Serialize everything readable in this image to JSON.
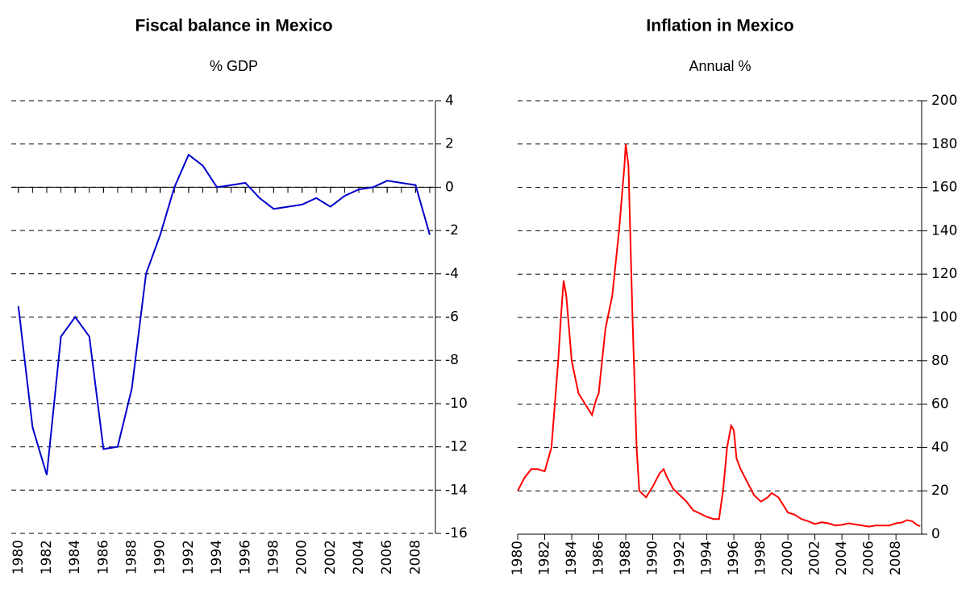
{
  "chart_data": [
    {
      "type": "line",
      "title": "Fiscal balance in Mexico",
      "subtitle": "% GDP",
      "x": [
        1980,
        1981,
        1982,
        1983,
        1984,
        1985,
        1986,
        1987,
        1988,
        1989,
        1990,
        1991,
        1992,
        1993,
        1994,
        1995,
        1996,
        1997,
        1998,
        1999,
        2000,
        2001,
        2002,
        2003,
        2004,
        2005,
        2006,
        2007,
        2008,
        2009
      ],
      "series": [
        {
          "name": "Fiscal balance",
          "color": "#0000cc",
          "values": [
            -5.5,
            -11.1,
            -13.3,
            -6.9,
            -6.0,
            -6.9,
            -12.1,
            -12.0,
            -9.3,
            -4.0,
            -2.2,
            0,
            1.5,
            1.0,
            0,
            0.1,
            0.2,
            -0.5,
            -1.0,
            -0.9,
            -0.8,
            -0.5,
            -0.9,
            -0.4,
            -0.1,
            0,
            0.3,
            0.2,
            0.1,
            -2.2
          ]
        }
      ],
      "xlim": [
        1979.5,
        2009.4
      ],
      "xticks": [
        1980,
        1982,
        1984,
        1986,
        1988,
        1990,
        1992,
        1994,
        1996,
        1998,
        2000,
        2002,
        2004,
        2006,
        2008
      ],
      "ylim": [
        -16,
        4
      ],
      "yticks": [
        -16,
        -14,
        -12,
        -10,
        -8,
        -6,
        -4,
        -2,
        0,
        2,
        4
      ],
      "grid": true,
      "y_axis_side": "right"
    },
    {
      "type": "line",
      "title": "Inflation in Mexico",
      "subtitle": "Annual %",
      "x": [
        1980.0,
        1980.5,
        1981.0,
        1981.5,
        1982.0,
        1982.5,
        1983.0,
        1983.2,
        1983.4,
        1983.6,
        1984.0,
        1984.5,
        1985.0,
        1985.5,
        1985.8,
        1986.0,
        1986.5,
        1987.0,
        1987.5,
        1987.9,
        1988.0,
        1988.2,
        1988.5,
        1988.8,
        1989.0,
        1989.5,
        1990.0,
        1990.5,
        1990.8,
        1991.0,
        1991.5,
        1992.0,
        1992.5,
        1993.0,
        1993.5,
        1994.0,
        1994.5,
        1994.9,
        1995.2,
        1995.5,
        1995.8,
        1996.0,
        1996.2,
        1996.5,
        1997.0,
        1997.5,
        1998.0,
        1998.5,
        1998.8,
        1999.3,
        1999.7,
        2000.0,
        2000.5,
        2001.0,
        2001.5,
        2002.0,
        2002.5,
        2003.0,
        2003.5,
        2004.0,
        2004.5,
        2005.0,
        2005.5,
        2006.0,
        2006.5,
        2007.0,
        2007.5,
        2008.0,
        2008.5,
        2008.8,
        2009.2,
        2009.6,
        2009.8
      ],
      "series": [
        {
          "name": "Inflation",
          "color": "#ff0000",
          "values": [
            20,
            26,
            30,
            30,
            29,
            40,
            80,
            100,
            117,
            110,
            80,
            65,
            60,
            55,
            62,
            65,
            95,
            110,
            140,
            170,
            180,
            170,
            100,
            40,
            20,
            17,
            22,
            28,
            30,
            27,
            21,
            18,
            15,
            11,
            9.5,
            8,
            7,
            7,
            20,
            40,
            50,
            48,
            35,
            30,
            24,
            18,
            15,
            17,
            19,
            17,
            13,
            10,
            9,
            7,
            6,
            4.7,
            5.5,
            5,
            4,
            4.3,
            5,
            4.5,
            4,
            3.5,
            4,
            4,
            4,
            5,
            5.5,
            6.5,
            6,
            4,
            3.8
          ]
        }
      ],
      "xlim": [
        1980,
        2009.9
      ],
      "xticks": [
        1980,
        1982,
        1984,
        1986,
        1988,
        1990,
        1992,
        1994,
        1996,
        1998,
        2000,
        2002,
        2004,
        2006,
        2008
      ],
      "ylim": [
        0,
        200
      ],
      "yticks": [
        0,
        20,
        40,
        60,
        80,
        100,
        120,
        140,
        160,
        180,
        200
      ],
      "grid": true,
      "y_axis_side": "right"
    }
  ]
}
